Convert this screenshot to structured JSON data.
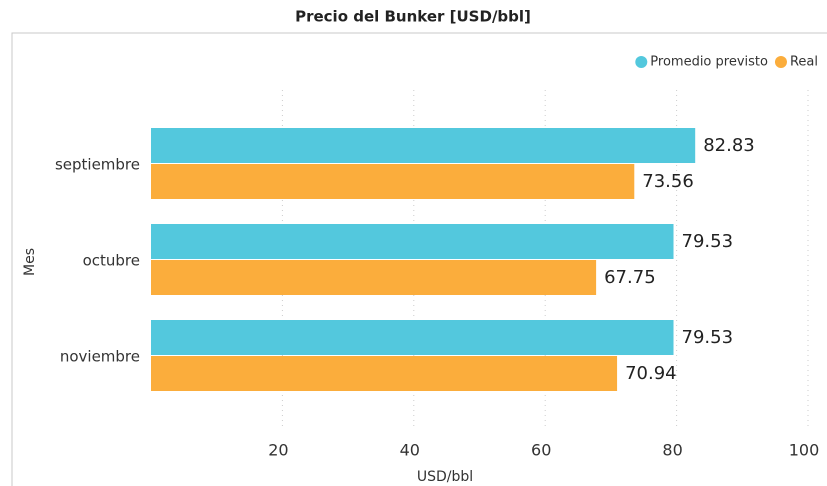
{
  "chart_data": {
    "type": "bar",
    "orientation": "horizontal",
    "title": "Precio del Bunker [USD/bbl]",
    "x_label": "USD/bbl",
    "y_label": "Mes",
    "categories": [
      "septiembre",
      "octubre",
      "noviembre"
    ],
    "series": [
      {
        "name": "Promedio previsto",
        "color": "#53c8dd",
        "values": [
          82.83,
          79.53,
          79.53
        ]
      },
      {
        "name": "Real",
        "color": "#fbad3c",
        "values": [
          73.56,
          67.75,
          70.94
        ]
      }
    ],
    "xlim": [
      0,
      100
    ],
    "xticks": [
      20,
      40,
      60,
      80,
      100
    ],
    "grid": true,
    "legend": "top-right"
  }
}
